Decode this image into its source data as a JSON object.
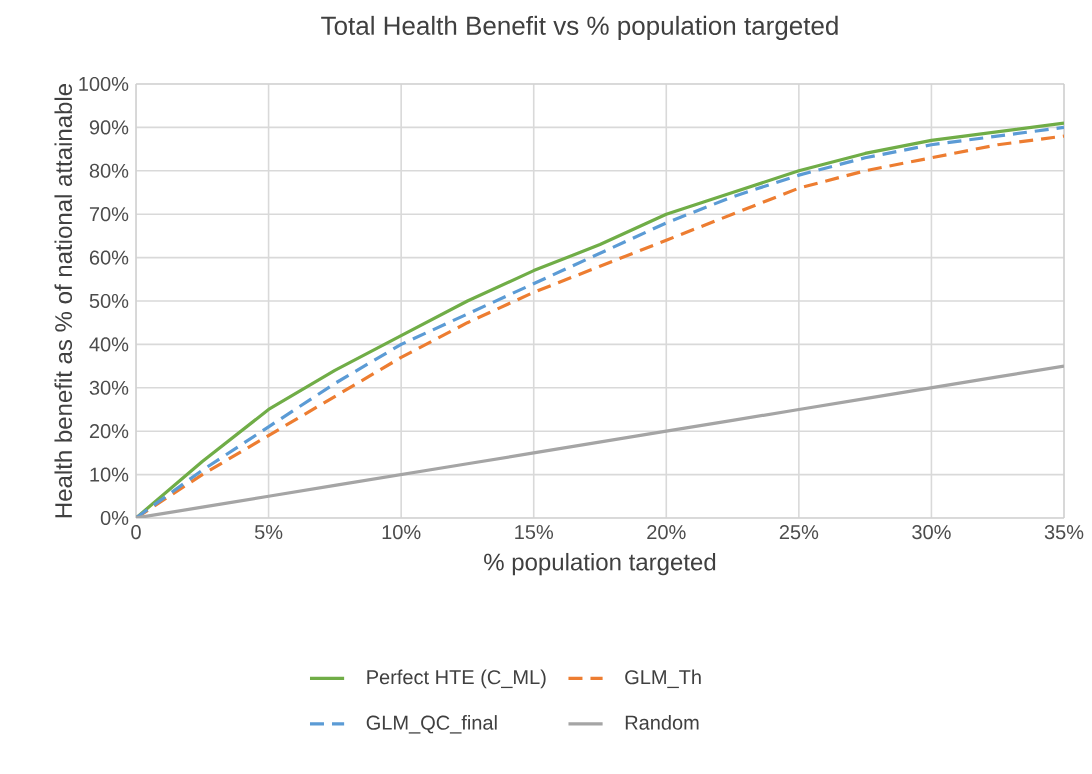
{
  "chart_data": {
    "type": "line",
    "title": "Total Health Benefit vs % population targeted",
    "xlabel": "% population targeted",
    "ylabel": "Health benefit as % of national attainable",
    "xlim": [
      0,
      35
    ],
    "ylim": [
      0,
      100
    ],
    "xticks": [
      {
        "value": 0,
        "label": "0"
      },
      {
        "value": 5,
        "label": "5%"
      },
      {
        "value": 10,
        "label": "10%"
      },
      {
        "value": 15,
        "label": "15%"
      },
      {
        "value": 20,
        "label": "20%"
      },
      {
        "value": 25,
        "label": "25%"
      },
      {
        "value": 30,
        "label": "30%"
      },
      {
        "value": 35,
        "label": "35%"
      }
    ],
    "yticks": [
      {
        "value": 0,
        "label": "0%"
      },
      {
        "value": 10,
        "label": "10%"
      },
      {
        "value": 20,
        "label": "20%"
      },
      {
        "value": 30,
        "label": "30%"
      },
      {
        "value": 40,
        "label": "40%"
      },
      {
        "value": 50,
        "label": "50%"
      },
      {
        "value": 60,
        "label": "60%"
      },
      {
        "value": 70,
        "label": "70%"
      },
      {
        "value": 80,
        "label": "80%"
      },
      {
        "value": 90,
        "label": "90%"
      },
      {
        "value": 100,
        "label": "100%"
      }
    ],
    "x": [
      0,
      2.5,
      5,
      7.5,
      10,
      12.5,
      15,
      17.5,
      20,
      22.5,
      25,
      27.5,
      30,
      32.5,
      35
    ],
    "grid": true,
    "legend": "bottom",
    "series": [
      {
        "name": "Perfect HTE (C_ML)",
        "color": "#70ad47",
        "line_style": "solid",
        "values": [
          0,
          13,
          25,
          34,
          42,
          50,
          57,
          63,
          70,
          75,
          80,
          84,
          87,
          89,
          91
        ]
      },
      {
        "name": "GLM_Th",
        "color": "#ed7d31",
        "line_style": "dashed",
        "values": [
          0,
          10,
          19,
          28,
          37,
          45,
          52,
          58,
          64,
          70,
          76,
          80,
          83,
          86,
          88
        ]
      },
      {
        "name": "GLM_QC_final",
        "color": "#5b9bd5",
        "line_style": "dashed",
        "values": [
          0,
          11,
          21,
          31,
          40,
          47,
          54,
          61,
          68,
          74,
          79,
          83,
          86,
          88,
          90
        ]
      },
      {
        "name": "Random",
        "color": "#a5a5a5",
        "line_style": "solid",
        "values": [
          0,
          2.5,
          5,
          7.5,
          10,
          12.5,
          15,
          17.5,
          20,
          22.5,
          25,
          27.5,
          30,
          32.5,
          35
        ]
      }
    ]
  }
}
